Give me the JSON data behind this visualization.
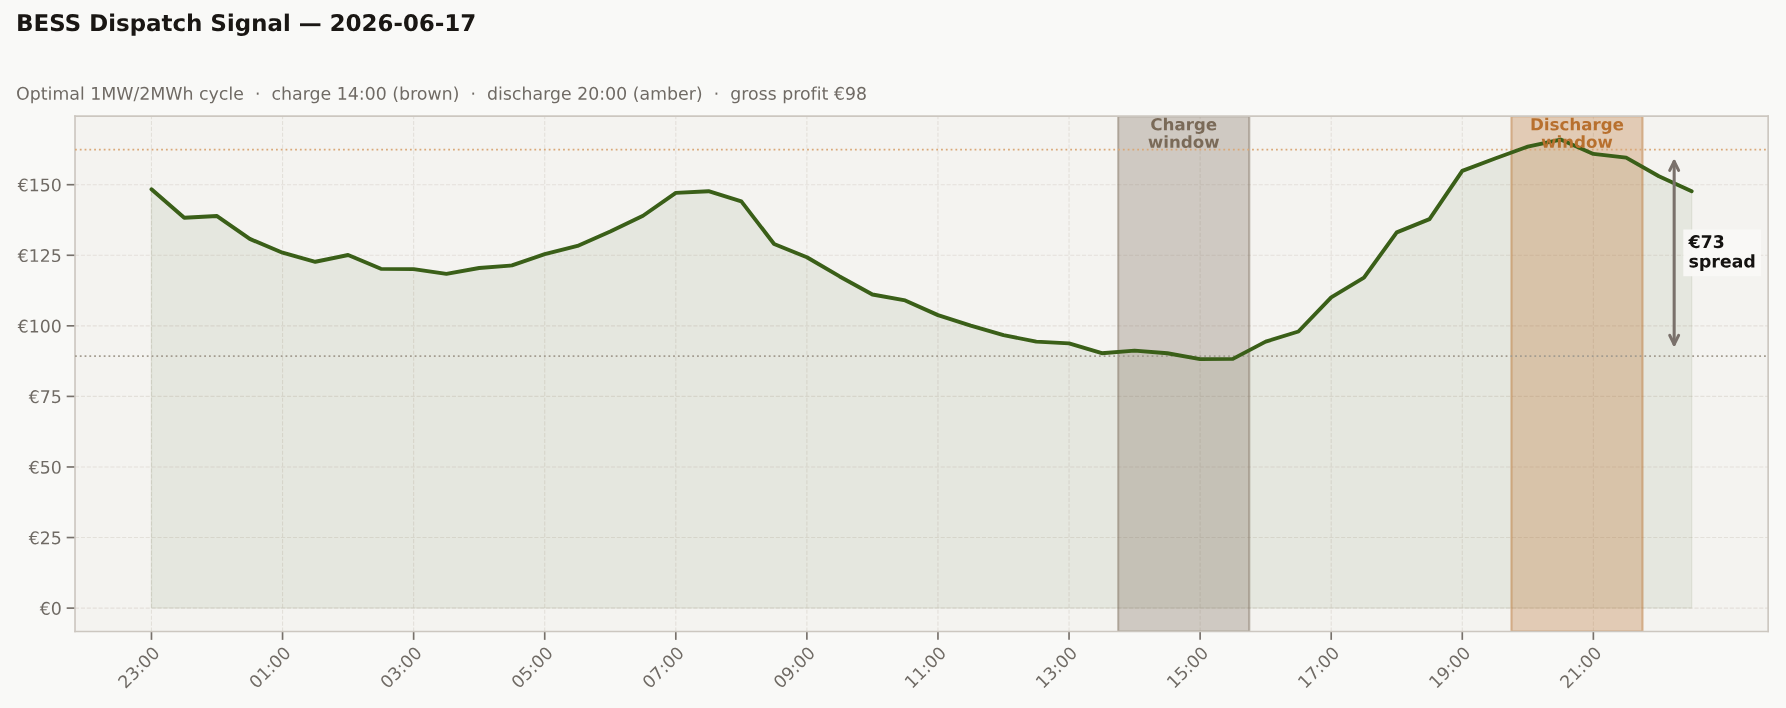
{
  "chart_data": {
    "type": "area",
    "title": "BESS Dispatch Signal — 2026-06-17",
    "subtitle": "Optimal 1MW/2MWh cycle  ·  charge 14:00 (brown)  ·  discharge 20:00 (amber)  ·  gross profit €98",
    "x": [
      "2026-06-16T23:00",
      "2026-06-16T23:30",
      "2026-06-17T00:00",
      "2026-06-17T00:30",
      "2026-06-17T01:00",
      "2026-06-17T01:30",
      "2026-06-17T02:00",
      "2026-06-17T02:30",
      "2026-06-17T03:00",
      "2026-06-17T03:30",
      "2026-06-17T04:00",
      "2026-06-17T04:30",
      "2026-06-17T05:00",
      "2026-06-17T05:30",
      "2026-06-17T06:00",
      "2026-06-17T06:30",
      "2026-06-17T07:00",
      "2026-06-17T07:30",
      "2026-06-17T08:00",
      "2026-06-17T08:30",
      "2026-06-17T09:00",
      "2026-06-17T09:30",
      "2026-06-17T10:00",
      "2026-06-17T10:30",
      "2026-06-17T11:00",
      "2026-06-17T11:30",
      "2026-06-17T12:00",
      "2026-06-17T12:30",
      "2026-06-17T13:00",
      "2026-06-17T13:30",
      "2026-06-17T14:00",
      "2026-06-17T14:30",
      "2026-06-17T15:00",
      "2026-06-17T15:30",
      "2026-06-17T16:00",
      "2026-06-17T16:30",
      "2026-06-17T17:00",
      "2026-06-17T17:30",
      "2026-06-17T18:00",
      "2026-06-17T18:30",
      "2026-06-17T19:00",
      "2026-06-17T19:30",
      "2026-06-17T20:00",
      "2026-06-17T20:30",
      "2026-06-17T21:00",
      "2026-06-17T21:30",
      "2026-06-17T22:00",
      "2026-06-17T22:30"
    ],
    "series": [
      {
        "color": "#3a5f18",
        "values": [
          148.4,
          138.3,
          138.9,
          130.8,
          125.9,
          122.7,
          125.1,
          120.2,
          120.1,
          118.4,
          120.5,
          121.4,
          125.4,
          128.3,
          133.4,
          139.0,
          147.1,
          147.7,
          144.1,
          129.0,
          124.3,
          117.5,
          111.1,
          109.0,
          103.8,
          100.1,
          96.7,
          94.4,
          93.8,
          90.3,
          91.2,
          90.3,
          88.2,
          88.3,
          94.4,
          98.0,
          110.1,
          117.1,
          133.1,
          137.8,
          154.9,
          159.3,
          163.5,
          166.0,
          160.9,
          159.6,
          153.0,
          147.7
        ]
      }
    ],
    "xlim": [
      "2026-06-16T21:50",
      "2026-06-17T23:40"
    ],
    "xticks": [
      {
        "value": "2026-06-16T23:00",
        "label": "23:00"
      },
      {
        "value": "2026-06-17T01:00",
        "label": "01:00"
      },
      {
        "value": "2026-06-17T03:00",
        "label": "03:00"
      },
      {
        "value": "2026-06-17T05:00",
        "label": "05:00"
      },
      {
        "value": "2026-06-17T07:00",
        "label": "07:00"
      },
      {
        "value": "2026-06-17T09:00",
        "label": "09:00"
      },
      {
        "value": "2026-06-17T11:00",
        "label": "11:00"
      },
      {
        "value": "2026-06-17T13:00",
        "label": "13:00"
      },
      {
        "value": "2026-06-17T15:00",
        "label": "15:00"
      },
      {
        "value": "2026-06-17T17:00",
        "label": "17:00"
      },
      {
        "value": "2026-06-17T19:00",
        "label": "19:00"
      },
      {
        "value": "2026-06-17T21:00",
        "label": "21:00"
      }
    ],
    "ylim": [
      -8.3,
      174.3
    ],
    "yticks": [
      {
        "value": 0,
        "label": "€0"
      },
      {
        "value": 25,
        "label": "€25"
      },
      {
        "value": 50,
        "label": "€50"
      },
      {
        "value": 75,
        "label": "€75"
      },
      {
        "value": 100,
        "label": "€100"
      },
      {
        "value": 125,
        "label": "€125"
      },
      {
        "value": 150,
        "label": "€150"
      }
    ],
    "grid": true,
    "ref_lines": [
      {
        "axis": "y",
        "value": 162.4,
        "color": "#d9a878",
        "line_style": "dotted"
      },
      {
        "axis": "y",
        "value": 89.3,
        "color": "#a39c90",
        "line_style": "dotted"
      }
    ],
    "bands": [
      {
        "axis": "x",
        "from": "2026-06-17T13:45",
        "to": "2026-06-17T15:45",
        "label": "Charge\nwindow",
        "color": "#7a6a58"
      },
      {
        "axis": "x",
        "from": "2026-06-17T19:45",
        "to": "2026-06-17T21:45",
        "label": "Discharge\nwindow",
        "color": "#b8702e"
      }
    ],
    "annotations": [
      "€73\nspread"
    ]
  }
}
